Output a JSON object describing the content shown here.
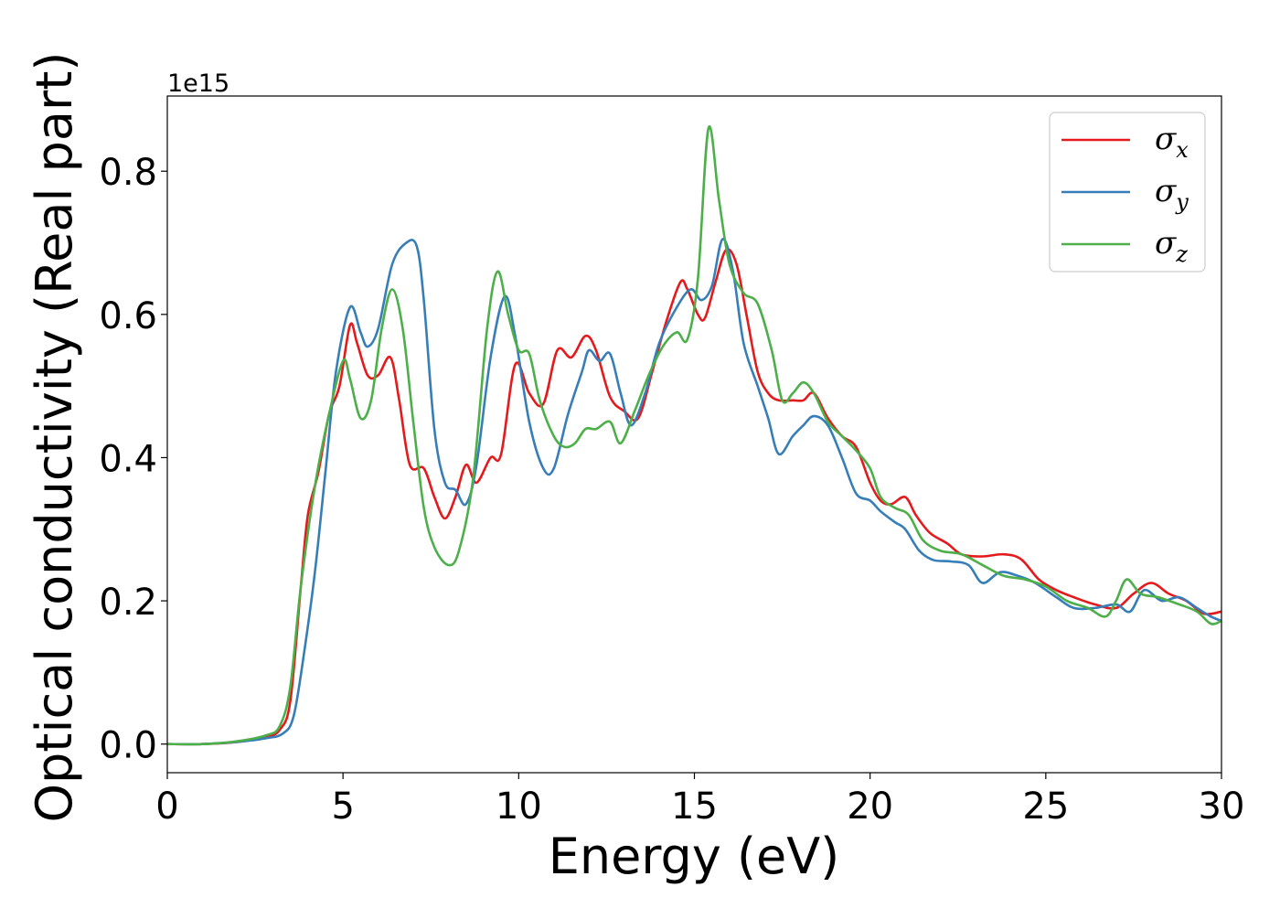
{
  "chart_data": {
    "type": "line",
    "xlabel": "Energy (eV)",
    "ylabel": "Optical conductivity (Real part)",
    "y_offset_label": "1e15",
    "xlim": [
      0,
      30
    ],
    "ylim": [
      -0.04,
      0.905
    ],
    "x_ticks": [
      0,
      5,
      10,
      15,
      20,
      25,
      30
    ],
    "x_tick_labels": [
      "0",
      "5",
      "10",
      "15",
      "20",
      "25",
      "30"
    ],
    "y_ticks": [
      0.0,
      0.2,
      0.4,
      0.6,
      0.8
    ],
    "y_tick_labels": [
      "0.0",
      "0.2",
      "0.4",
      "0.6",
      "0.8"
    ],
    "grid": false,
    "legend_position": "top-right",
    "series": [
      {
        "name": "σ",
        "subscript": "x",
        "color": "#e41a1c",
        "points": [
          [
            0,
            0.0
          ],
          [
            1,
            0.0
          ],
          [
            2,
            0.003
          ],
          [
            2.8,
            0.01
          ],
          [
            3.2,
            0.02
          ],
          [
            3.5,
            0.06
          ],
          [
            3.8,
            0.22
          ],
          [
            4.0,
            0.32
          ],
          [
            4.3,
            0.38
          ],
          [
            4.6,
            0.46
          ],
          [
            4.9,
            0.5
          ],
          [
            5.2,
            0.585
          ],
          [
            5.4,
            0.56
          ],
          [
            5.7,
            0.515
          ],
          [
            6.0,
            0.515
          ],
          [
            6.35,
            0.54
          ],
          [
            6.6,
            0.48
          ],
          [
            6.9,
            0.39
          ],
          [
            7.3,
            0.385
          ],
          [
            7.6,
            0.345
          ],
          [
            7.9,
            0.315
          ],
          [
            8.2,
            0.345
          ],
          [
            8.5,
            0.39
          ],
          [
            8.8,
            0.365
          ],
          [
            9.2,
            0.4
          ],
          [
            9.5,
            0.405
          ],
          [
            9.9,
            0.53
          ],
          [
            10.3,
            0.49
          ],
          [
            10.7,
            0.475
          ],
          [
            11.1,
            0.55
          ],
          [
            11.5,
            0.54
          ],
          [
            11.9,
            0.57
          ],
          [
            12.2,
            0.55
          ],
          [
            12.6,
            0.485
          ],
          [
            13.0,
            0.465
          ],
          [
            13.4,
            0.455
          ],
          [
            13.8,
            0.52
          ],
          [
            14.2,
            0.59
          ],
          [
            14.6,
            0.645
          ],
          [
            14.8,
            0.635
          ],
          [
            15.1,
            0.6
          ],
          [
            15.3,
            0.595
          ],
          [
            15.6,
            0.645
          ],
          [
            15.9,
            0.69
          ],
          [
            16.2,
            0.67
          ],
          [
            16.5,
            0.595
          ],
          [
            16.8,
            0.52
          ],
          [
            17.1,
            0.49
          ],
          [
            17.4,
            0.48
          ],
          [
            17.8,
            0.48
          ],
          [
            18.1,
            0.48
          ],
          [
            18.4,
            0.49
          ],
          [
            18.8,
            0.455
          ],
          [
            19.2,
            0.43
          ],
          [
            19.6,
            0.415
          ],
          [
            20.0,
            0.365
          ],
          [
            20.3,
            0.34
          ],
          [
            20.6,
            0.335
          ],
          [
            21.0,
            0.345
          ],
          [
            21.3,
            0.32
          ],
          [
            21.7,
            0.295
          ],
          [
            22.2,
            0.28
          ],
          [
            22.6,
            0.265
          ],
          [
            23.2,
            0.262
          ],
          [
            23.8,
            0.265
          ],
          [
            24.3,
            0.258
          ],
          [
            24.8,
            0.23
          ],
          [
            25.3,
            0.215
          ],
          [
            25.8,
            0.205
          ],
          [
            26.4,
            0.195
          ],
          [
            27.0,
            0.19
          ],
          [
            27.5,
            0.21
          ],
          [
            28.0,
            0.225
          ],
          [
            28.5,
            0.21
          ],
          [
            29.0,
            0.2
          ],
          [
            29.5,
            0.182
          ],
          [
            30,
            0.185
          ]
        ]
      },
      {
        "name": "σ",
        "subscript": "y",
        "color": "#377eb8",
        "points": [
          [
            0,
            0.0
          ],
          [
            1,
            0.0
          ],
          [
            2,
            0.003
          ],
          [
            2.8,
            0.008
          ],
          [
            3.3,
            0.015
          ],
          [
            3.6,
            0.04
          ],
          [
            3.9,
            0.13
          ],
          [
            4.2,
            0.24
          ],
          [
            4.5,
            0.38
          ],
          [
            4.8,
            0.52
          ],
          [
            5.2,
            0.61
          ],
          [
            5.5,
            0.575
          ],
          [
            5.7,
            0.555
          ],
          [
            6.0,
            0.58
          ],
          [
            6.4,
            0.67
          ],
          [
            6.8,
            0.7
          ],
          [
            7.1,
            0.695
          ],
          [
            7.3,
            0.62
          ],
          [
            7.6,
            0.44
          ],
          [
            7.9,
            0.365
          ],
          [
            8.2,
            0.355
          ],
          [
            8.5,
            0.335
          ],
          [
            8.8,
            0.39
          ],
          [
            9.2,
            0.54
          ],
          [
            9.6,
            0.625
          ],
          [
            9.9,
            0.57
          ],
          [
            10.3,
            0.45
          ],
          [
            10.7,
            0.385
          ],
          [
            11.0,
            0.385
          ],
          [
            11.4,
            0.46
          ],
          [
            11.8,
            0.52
          ],
          [
            12.0,
            0.55
          ],
          [
            12.3,
            0.535
          ],
          [
            12.6,
            0.545
          ],
          [
            12.9,
            0.49
          ],
          [
            13.2,
            0.445
          ],
          [
            13.6,
            0.49
          ],
          [
            14.0,
            0.56
          ],
          [
            14.5,
            0.61
          ],
          [
            14.9,
            0.635
          ],
          [
            15.2,
            0.62
          ],
          [
            15.5,
            0.64
          ],
          [
            15.8,
            0.705
          ],
          [
            16.1,
            0.66
          ],
          [
            16.4,
            0.56
          ],
          [
            16.8,
            0.5
          ],
          [
            17.1,
            0.455
          ],
          [
            17.4,
            0.405
          ],
          [
            17.8,
            0.43
          ],
          [
            18.1,
            0.445
          ],
          [
            18.4,
            0.458
          ],
          [
            18.8,
            0.445
          ],
          [
            19.2,
            0.4
          ],
          [
            19.6,
            0.35
          ],
          [
            20.0,
            0.34
          ],
          [
            20.3,
            0.325
          ],
          [
            20.7,
            0.31
          ],
          [
            21.0,
            0.3
          ],
          [
            21.4,
            0.27
          ],
          [
            21.8,
            0.257
          ],
          [
            22.3,
            0.255
          ],
          [
            22.8,
            0.25
          ],
          [
            23.2,
            0.225
          ],
          [
            23.7,
            0.24
          ],
          [
            24.2,
            0.235
          ],
          [
            24.7,
            0.225
          ],
          [
            25.3,
            0.205
          ],
          [
            25.8,
            0.19
          ],
          [
            26.4,
            0.19
          ],
          [
            27.0,
            0.195
          ],
          [
            27.4,
            0.185
          ],
          [
            27.8,
            0.215
          ],
          [
            28.3,
            0.2
          ],
          [
            28.8,
            0.205
          ],
          [
            29.3,
            0.19
          ],
          [
            29.7,
            0.178
          ],
          [
            30,
            0.172
          ]
        ]
      },
      {
        "name": "σ",
        "subscript": "z",
        "color": "#4daf4a",
        "points": [
          [
            0,
            0.0
          ],
          [
            1,
            0.0
          ],
          [
            2,
            0.004
          ],
          [
            2.8,
            0.012
          ],
          [
            3.2,
            0.025
          ],
          [
            3.5,
            0.08
          ],
          [
            3.8,
            0.22
          ],
          [
            4.2,
            0.36
          ],
          [
            4.6,
            0.46
          ],
          [
            5.0,
            0.535
          ],
          [
            5.2,
            0.51
          ],
          [
            5.5,
            0.455
          ],
          [
            5.8,
            0.48
          ],
          [
            6.1,
            0.58
          ],
          [
            6.4,
            0.635
          ],
          [
            6.7,
            0.58
          ],
          [
            7.0,
            0.45
          ],
          [
            7.3,
            0.33
          ],
          [
            7.6,
            0.275
          ],
          [
            8.0,
            0.25
          ],
          [
            8.3,
            0.27
          ],
          [
            8.7,
            0.37
          ],
          [
            9.1,
            0.58
          ],
          [
            9.4,
            0.66
          ],
          [
            9.7,
            0.6
          ],
          [
            10.0,
            0.55
          ],
          [
            10.3,
            0.545
          ],
          [
            10.6,
            0.48
          ],
          [
            11.0,
            0.43
          ],
          [
            11.3,
            0.415
          ],
          [
            11.6,
            0.42
          ],
          [
            11.9,
            0.44
          ],
          [
            12.2,
            0.44
          ],
          [
            12.6,
            0.45
          ],
          [
            12.9,
            0.42
          ],
          [
            13.3,
            0.465
          ],
          [
            13.7,
            0.515
          ],
          [
            14.1,
            0.555
          ],
          [
            14.5,
            0.575
          ],
          [
            14.8,
            0.565
          ],
          [
            15.1,
            0.65
          ],
          [
            15.4,
            0.86
          ],
          [
            15.7,
            0.76
          ],
          [
            16.0,
            0.67
          ],
          [
            16.4,
            0.63
          ],
          [
            16.8,
            0.615
          ],
          [
            17.2,
            0.55
          ],
          [
            17.5,
            0.48
          ],
          [
            17.8,
            0.49
          ],
          [
            18.1,
            0.505
          ],
          [
            18.4,
            0.49
          ],
          [
            18.8,
            0.45
          ],
          [
            19.2,
            0.43
          ],
          [
            19.6,
            0.41
          ],
          [
            20.0,
            0.385
          ],
          [
            20.3,
            0.345
          ],
          [
            20.7,
            0.33
          ],
          [
            21.1,
            0.32
          ],
          [
            21.5,
            0.285
          ],
          [
            22.0,
            0.27
          ],
          [
            22.6,
            0.265
          ],
          [
            23.2,
            0.25
          ],
          [
            23.8,
            0.235
          ],
          [
            24.4,
            0.23
          ],
          [
            25.0,
            0.22
          ],
          [
            25.6,
            0.2
          ],
          [
            26.2,
            0.19
          ],
          [
            26.7,
            0.178
          ],
          [
            27.0,
            0.2
          ],
          [
            27.3,
            0.23
          ],
          [
            27.7,
            0.21
          ],
          [
            28.2,
            0.205
          ],
          [
            28.8,
            0.195
          ],
          [
            29.3,
            0.185
          ],
          [
            29.7,
            0.168
          ],
          [
            30,
            0.172
          ]
        ]
      }
    ]
  }
}
